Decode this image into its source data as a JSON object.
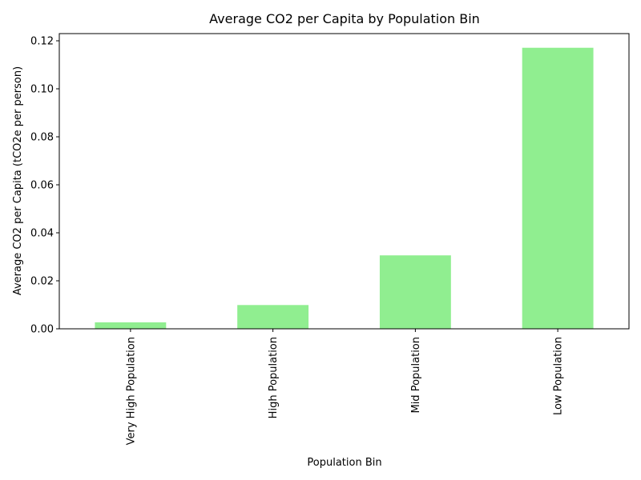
{
  "chart_data": {
    "type": "bar",
    "title": "Average CO2 per Capita by Population Bin",
    "xlabel": "Population Bin",
    "ylabel": "Average CO2 per Capita (tCO2e per person)",
    "categories": [
      "Very High Population",
      "High Population",
      "Mid Population",
      "Low Population"
    ],
    "values": [
      0.0027,
      0.0099,
      0.0306,
      0.1171
    ],
    "ylim": [
      0,
      0.123
    ],
    "yticks": [
      0.0,
      0.02,
      0.04,
      0.06,
      0.08,
      0.1,
      0.12
    ],
    "ytick_labels": [
      "0.00",
      "0.02",
      "0.04",
      "0.06",
      "0.08",
      "0.10",
      "0.12"
    ],
    "xtick_rotation": "vertical",
    "bar_color": "#90ee90",
    "grid": false,
    "legend": "none"
  }
}
